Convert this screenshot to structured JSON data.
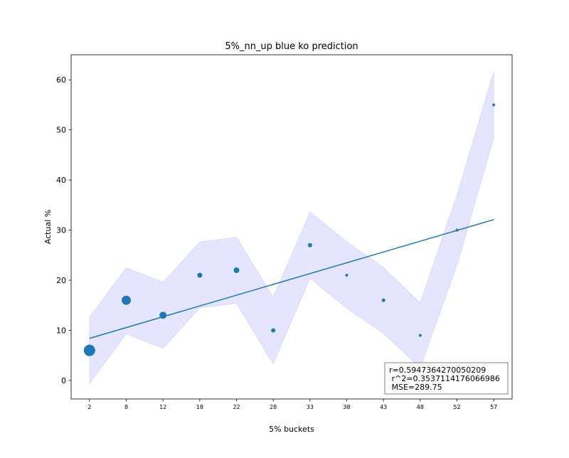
{
  "chart_data": {
    "type": "scatter",
    "title": "5%_nn_up blue ko prediction",
    "xlabel": "5% buckets",
    "ylabel": "Actual %",
    "xlim": [
      -0.5,
      11.5
    ],
    "ylim": [
      -3.7,
      65
    ],
    "x_tick_labels": [
      "2",
      "8",
      "12",
      "18",
      "22",
      "28",
      "33",
      "38",
      "43",
      "48",
      "52",
      "57"
    ],
    "y_ticks": [
      0,
      10,
      20,
      30,
      40,
      50,
      60
    ],
    "grid": false,
    "series": [
      {
        "kind": "points",
        "color": "#1f77b4",
        "x": [
          0,
          1,
          2,
          3,
          4,
          5,
          6,
          7,
          8,
          9,
          10,
          11
        ],
        "y": [
          6,
          16,
          13,
          21,
          22,
          10,
          27,
          21,
          16,
          9,
          30,
          55
        ],
        "marker_sizes": [
          16,
          13,
          10,
          7,
          8,
          6,
          6,
          4,
          5,
          4,
          4,
          4
        ]
      },
      {
        "kind": "band",
        "color": "#0000ff",
        "opacity": 0.1,
        "x": [
          0,
          1,
          2,
          3,
          4,
          5,
          6,
          7,
          8,
          9,
          10,
          11
        ],
        "lower": [
          -0.6,
          9.3,
          6.4,
          14.5,
          15.4,
          3.3,
          20.4,
          14.4,
          9.4,
          2.5,
          23.0,
          48.4
        ],
        "upper": [
          12.6,
          22.5,
          19.6,
          27.6,
          28.6,
          16.6,
          33.6,
          27.7,
          22.5,
          15.5,
          37.0,
          61.6
        ]
      },
      {
        "kind": "fit-line",
        "color": "#1f77b4",
        "x": [
          0,
          11
        ],
        "y": [
          8.4,
          32.1
        ]
      }
    ],
    "stats": {
      "lines": [
        "r=0.5947364270050209",
        " r^2=0.3537114176066986",
        " MSE=289.75"
      ],
      "placement": "bottom-right"
    }
  }
}
